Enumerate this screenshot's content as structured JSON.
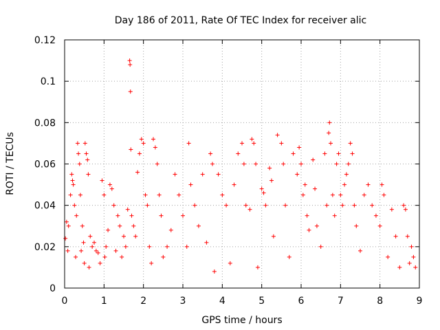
{
  "chart_data": {
    "type": "scatter",
    "title": "Day 186 of 2011, Rate Of TEC Index for receiver alic",
    "xlabel": "GPS time / hours",
    "ylabel": "ROTI / TECUs",
    "xlim": [
      0,
      9
    ],
    "ylim": [
      0,
      0.12
    ],
    "xticks": [
      0,
      1,
      2,
      3,
      4,
      5,
      6,
      7,
      8,
      9
    ],
    "yticks": [
      0,
      0.02,
      0.04,
      0.06,
      0.08,
      0.1,
      0.12
    ],
    "xtick_labels": [
      "0",
      "1",
      "2",
      "3",
      "4",
      "5",
      "6",
      "7",
      "8",
      "9"
    ],
    "ytick_labels": [
      "0",
      "0.02",
      "0.04",
      "0.06",
      "0.08",
      "0.1",
      "0.12"
    ],
    "grid": true,
    "marker": "+",
    "color": "#ff0000",
    "series": [
      {
        "name": "ROTI",
        "points": [
          [
            0.02,
            0.024
          ],
          [
            0.05,
            0.032
          ],
          [
            0.08,
            0.018
          ],
          [
            0.1,
            0.03
          ],
          [
            0.15,
            0.045
          ],
          [
            0.18,
            0.055
          ],
          [
            0.2,
            0.052
          ],
          [
            0.22,
            0.05
          ],
          [
            0.25,
            0.04
          ],
          [
            0.28,
            0.015
          ],
          [
            0.3,
            0.035
          ],
          [
            0.33,
            0.07
          ],
          [
            0.35,
            0.065
          ],
          [
            0.38,
            0.06
          ],
          [
            0.4,
            0.045
          ],
          [
            0.42,
            0.018
          ],
          [
            0.45,
            0.03
          ],
          [
            0.48,
            0.022
          ],
          [
            0.5,
            0.012
          ],
          [
            0.52,
            0.07
          ],
          [
            0.55,
            0.065
          ],
          [
            0.58,
            0.062
          ],
          [
            0.6,
            0.055
          ],
          [
            0.62,
            0.01
          ],
          [
            0.65,
            0.025
          ],
          [
            0.7,
            0.02
          ],
          [
            0.75,
            0.022
          ],
          [
            0.8,
            0.018
          ],
          [
            0.85,
            0.017
          ],
          [
            0.9,
            0.012
          ],
          [
            0.95,
            0.052
          ],
          [
            1.0,
            0.045
          ],
          [
            1.02,
            0.015
          ],
          [
            1.05,
            0.02
          ],
          [
            1.1,
            0.028
          ],
          [
            1.15,
            0.05
          ],
          [
            1.2,
            0.048
          ],
          [
            1.25,
            0.04
          ],
          [
            1.3,
            0.018
          ],
          [
            1.35,
            0.035
          ],
          [
            1.4,
            0.03
          ],
          [
            1.45,
            0.015
          ],
          [
            1.5,
            0.025
          ],
          [
            1.55,
            0.02
          ],
          [
            1.6,
            0.038
          ],
          [
            1.65,
            0.11
          ],
          [
            1.66,
            0.108
          ],
          [
            1.67,
            0.095
          ],
          [
            1.68,
            0.067
          ],
          [
            1.7,
            0.035
          ],
          [
            1.75,
            0.03
          ],
          [
            1.8,
            0.025
          ],
          [
            1.85,
            0.056
          ],
          [
            1.9,
            0.065
          ],
          [
            1.95,
            0.072
          ],
          [
            2.0,
            0.07
          ],
          [
            2.05,
            0.045
          ],
          [
            2.1,
            0.04
          ],
          [
            2.15,
            0.02
          ],
          [
            2.2,
            0.012
          ],
          [
            2.25,
            0.072
          ],
          [
            2.3,
            0.068
          ],
          [
            2.35,
            0.06
          ],
          [
            2.4,
            0.045
          ],
          [
            2.45,
            0.035
          ],
          [
            2.5,
            0.015
          ],
          [
            2.6,
            0.02
          ],
          [
            2.7,
            0.028
          ],
          [
            2.8,
            0.055
          ],
          [
            2.9,
            0.045
          ],
          [
            3.0,
            0.035
          ],
          [
            3.1,
            0.02
          ],
          [
            3.15,
            0.07
          ],
          [
            3.2,
            0.05
          ],
          [
            3.3,
            0.04
          ],
          [
            3.4,
            0.03
          ],
          [
            3.5,
            0.055
          ],
          [
            3.6,
            0.022
          ],
          [
            3.7,
            0.065
          ],
          [
            3.75,
            0.06
          ],
          [
            3.8,
            0.008
          ],
          [
            3.9,
            0.055
          ],
          [
            4.0,
            0.045
          ],
          [
            4.1,
            0.04
          ],
          [
            4.2,
            0.012
          ],
          [
            4.3,
            0.05
          ],
          [
            4.4,
            0.065
          ],
          [
            4.5,
            0.07
          ],
          [
            4.55,
            0.06
          ],
          [
            4.6,
            0.04
          ],
          [
            4.7,
            0.038
          ],
          [
            4.75,
            0.072
          ],
          [
            4.8,
            0.07
          ],
          [
            4.85,
            0.06
          ],
          [
            4.9,
            0.01
          ],
          [
            5.0,
            0.048
          ],
          [
            5.05,
            0.046
          ],
          [
            5.1,
            0.04
          ],
          [
            5.2,
            0.058
          ],
          [
            5.25,
            0.052
          ],
          [
            5.3,
            0.025
          ],
          [
            5.4,
            0.074
          ],
          [
            5.5,
            0.07
          ],
          [
            5.55,
            0.06
          ],
          [
            5.6,
            0.04
          ],
          [
            5.7,
            0.015
          ],
          [
            5.8,
            0.065
          ],
          [
            5.9,
            0.055
          ],
          [
            5.95,
            0.068
          ],
          [
            6.0,
            0.06
          ],
          [
            6.05,
            0.045
          ],
          [
            6.1,
            0.05
          ],
          [
            6.15,
            0.035
          ],
          [
            6.2,
            0.028
          ],
          [
            6.3,
            0.062
          ],
          [
            6.35,
            0.048
          ],
          [
            6.4,
            0.03
          ],
          [
            6.5,
            0.02
          ],
          [
            6.6,
            0.065
          ],
          [
            6.65,
            0.04
          ],
          [
            6.7,
            0.075
          ],
          [
            6.72,
            0.08
          ],
          [
            6.75,
            0.07
          ],
          [
            6.8,
            0.045
          ],
          [
            6.85,
            0.035
          ],
          [
            6.9,
            0.06
          ],
          [
            6.95,
            0.065
          ],
          [
            7.0,
            0.045
          ],
          [
            7.05,
            0.04
          ],
          [
            7.1,
            0.05
          ],
          [
            7.15,
            0.055
          ],
          [
            7.2,
            0.06
          ],
          [
            7.25,
            0.07
          ],
          [
            7.3,
            0.065
          ],
          [
            7.35,
            0.04
          ],
          [
            7.4,
            0.03
          ],
          [
            7.5,
            0.018
          ],
          [
            7.6,
            0.045
          ],
          [
            7.7,
            0.05
          ],
          [
            7.8,
            0.04
          ],
          [
            7.9,
            0.035
          ],
          [
            8.0,
            0.03
          ],
          [
            8.05,
            0.05
          ],
          [
            8.1,
            0.045
          ],
          [
            8.2,
            0.015
          ],
          [
            8.3,
            0.038
          ],
          [
            8.4,
            0.025
          ],
          [
            8.5,
            0.01
          ],
          [
            8.6,
            0.04
          ],
          [
            8.65,
            0.038
          ],
          [
            8.7,
            0.025
          ],
          [
            8.75,
            0.012
          ],
          [
            8.8,
            0.02
          ],
          [
            8.85,
            0.015
          ],
          [
            8.9,
            0.01
          ]
        ]
      }
    ]
  }
}
